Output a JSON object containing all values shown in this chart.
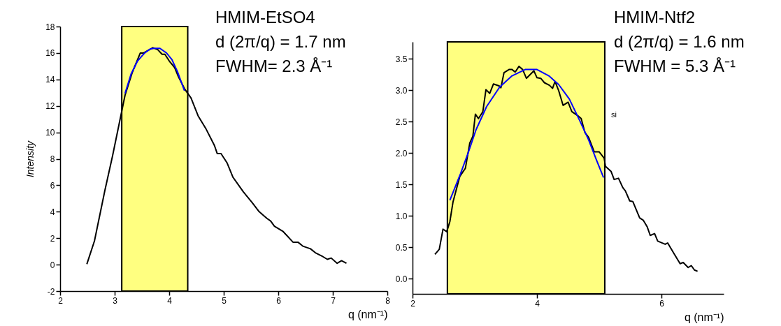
{
  "chart_data": [
    {
      "type": "line",
      "title": "HMIM-EtSO4",
      "annotations": [
        "d (2π/q) = 1.7 nm",
        "FWHM= 2.3 Å⁻¹"
      ],
      "xlabel": "q (nm⁻¹)",
      "ylabel": "Intensity",
      "xlim": [
        2,
        8
      ],
      "xticks": [
        2,
        3,
        4,
        5,
        6,
        7,
        8
      ],
      "ylim": [
        -2,
        18
      ],
      "yticks": [
        -2,
        0,
        2,
        4,
        6,
        8,
        10,
        12,
        14,
        16,
        18
      ],
      "grid": false,
      "bands": [
        {
          "axis": "x",
          "from": 3.13,
          "to": 4.34,
          "color": "#ffff80"
        }
      ],
      "series": [
        {
          "type": "line",
          "color": "#000000",
          "x": [
            2.49,
            2.63,
            2.82,
            2.96,
            3.13,
            3.19,
            3.32,
            3.47,
            3.53,
            3.7,
            3.79,
            3.87,
            3.92,
            4.0,
            4.1,
            4.17,
            4.28,
            4.4,
            4.53,
            4.67,
            4.83,
            4.88,
            4.95,
            5.06,
            5.17,
            5.36,
            5.52,
            5.65,
            5.79,
            5.86,
            5.93,
            6.09,
            6.27,
            6.36,
            6.45,
            6.59,
            6.68,
            6.82,
            6.9,
            6.97,
            7.08,
            7.16,
            7.25
          ],
          "values": [
            0.04,
            1.8,
            5.6,
            8.2,
            11.6,
            12.8,
            14.5,
            16.0,
            16.0,
            16.4,
            16.25,
            15.9,
            15.9,
            15.4,
            14.9,
            14.2,
            13.3,
            12.6,
            11.25,
            10.3,
            9.0,
            8.4,
            8.4,
            7.7,
            6.6,
            5.5,
            4.7,
            4.0,
            3.5,
            3.3,
            2.9,
            2.5,
            1.7,
            1.7,
            1.4,
            1.2,
            0.9,
            0.6,
            0.4,
            0.5,
            0.1,
            0.3,
            0.1
          ]
        },
        {
          "type": "line",
          "color": "#0000ff",
          "x": [
            3.19,
            3.3,
            3.42,
            3.55,
            3.65,
            3.72,
            3.83,
            3.95,
            4.05,
            4.15,
            4.28
          ],
          "values": [
            12.95,
            14.4,
            15.4,
            16.0,
            16.3,
            16.35,
            16.35,
            16.0,
            15.5,
            14.6,
            13.15
          ]
        }
      ]
    },
    {
      "type": "line",
      "title": "HMIM-Ntf2",
      "annotations": [
        "d (2π/q) = 1.6 nm",
        "FWHM = 5.3  Å⁻¹",
        {
          "text": "si"
        }
      ],
      "xlabel": "q (nm⁻¹)",
      "xlim": [
        2,
        7
      ],
      "xticks": [
        2,
        4,
        6
      ],
      "ylim": [
        -0.24,
        3.77
      ],
      "yticks": [
        {
          "value": 0,
          "label": "0.0"
        },
        0.5,
        {
          "value": 1,
          "label": "1.0"
        },
        1.5,
        {
          "value": 2,
          "label": "2.0"
        },
        2.5,
        {
          "value": 3,
          "label": "3.0"
        },
        3.5
      ],
      "grid": false,
      "bands": [
        {
          "axis": "x",
          "from": 2.56,
          "to": 5.09,
          "color": "#ffff80"
        }
      ],
      "series": [
        {
          "type": "line",
          "color": "#000000",
          "x": [
            2.36,
            2.43,
            2.49,
            2.55,
            2.6,
            2.65,
            2.76,
            2.85,
            2.92,
            2.97,
            3.01,
            3.06,
            3.13,
            3.18,
            3.24,
            3.3,
            3.39,
            3.42,
            3.47,
            3.55,
            3.6,
            3.65,
            3.71,
            3.77,
            3.83,
            3.95,
            4.0,
            4.06,
            4.12,
            4.2,
            4.25,
            4.29,
            4.35,
            4.42,
            4.5,
            4.56,
            4.65,
            4.71,
            4.77,
            4.83,
            4.92,
            5.0,
            5.08,
            5.1,
            5.19,
            5.24,
            5.31,
            5.38,
            5.42,
            5.49,
            5.54,
            5.65,
            5.71,
            5.77,
            5.82,
            5.89,
            5.94,
            6.06,
            6.1,
            6.19,
            6.3,
            6.35,
            6.43,
            6.48,
            6.53,
            6.58
          ],
          "values": [
            0.39,
            0.47,
            0.79,
            0.75,
            0.91,
            1.22,
            1.63,
            1.76,
            2.16,
            2.27,
            2.62,
            2.55,
            2.66,
            3.01,
            2.95,
            3.1,
            3.07,
            3.04,
            3.28,
            3.33,
            3.33,
            3.29,
            3.38,
            3.33,
            3.19,
            3.31,
            3.2,
            3.19,
            3.12,
            3.08,
            3.03,
            3.14,
            2.99,
            2.76,
            2.81,
            2.66,
            2.6,
            2.55,
            2.33,
            2.25,
            2.02,
            2.02,
            1.92,
            1.79,
            1.71,
            1.58,
            1.6,
            1.45,
            1.4,
            1.24,
            1.23,
            0.97,
            0.93,
            0.83,
            0.69,
            0.72,
            0.6,
            0.55,
            0.57,
            0.42,
            0.24,
            0.26,
            0.18,
            0.21,
            0.14,
            0.12
          ]
        },
        {
          "type": "line",
          "color": "#0000ff",
          "x": [
            2.6,
            2.77,
            2.9,
            3.02,
            3.19,
            3.4,
            3.6,
            3.81,
            4.0,
            4.19,
            4.35,
            4.52,
            4.69,
            4.83,
            4.96,
            5.07
          ],
          "values": [
            1.25,
            1.67,
            2.02,
            2.37,
            2.74,
            3.05,
            3.23,
            3.33,
            3.33,
            3.23,
            3.09,
            2.86,
            2.51,
            2.21,
            1.88,
            1.61
          ]
        }
      ]
    }
  ]
}
